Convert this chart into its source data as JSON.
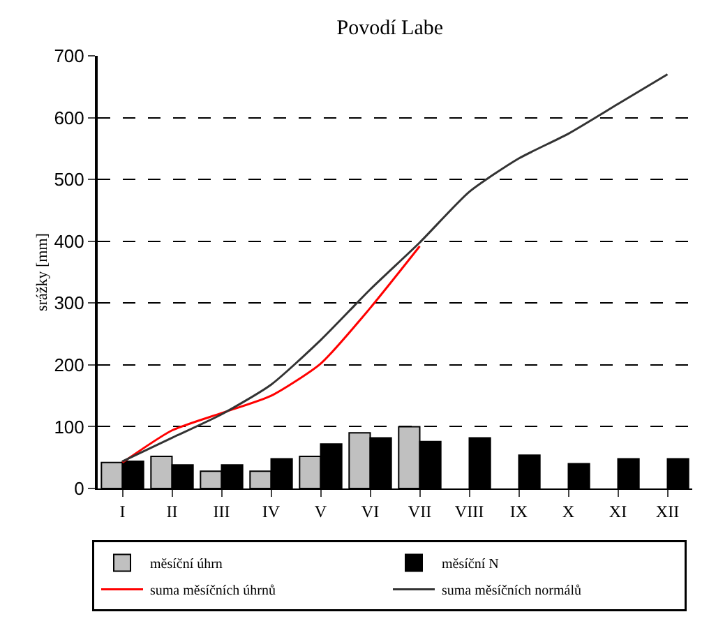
{
  "chart_data": {
    "type": "bar",
    "title": "Povodí Labe",
    "ylabel": "srážky [mm]",
    "categories": [
      "I",
      "II",
      "III",
      "IV",
      "V",
      "VI",
      "VII",
      "VIII",
      "IX",
      "X",
      "XI",
      "XII"
    ],
    "series": [
      {
        "name": "měsíční úhrn",
        "color": "#c0c0c0",
        "values": [
          42,
          52,
          28,
          28,
          52,
          90,
          100,
          null,
          null,
          null,
          null,
          null
        ]
      },
      {
        "name": "měsíční N",
        "color": "#000000",
        "values": [
          44,
          38,
          38,
          48,
          72,
          82,
          76,
          82,
          54,
          40,
          48,
          48
        ]
      },
      {
        "name": "suma měsíčních úhrnů",
        "type": "line",
        "color": "#ff0000",
        "values": [
          42,
          94,
          122,
          150,
          202,
          292,
          392,
          null,
          null,
          null,
          null,
          null
        ]
      },
      {
        "name": "suma měsíčních normálů",
        "type": "line",
        "color": "#333333",
        "values": [
          44,
          82,
          120,
          168,
          240,
          322,
          398,
          480,
          534,
          574,
          622,
          670
        ]
      }
    ],
    "ylim": [
      0,
      700
    ],
    "yticks": [
      0,
      100,
      200,
      300,
      400,
      500,
      600,
      700
    ],
    "grid": "y",
    "legend": "bottom",
    "marker": "none",
    "line_style": "solid"
  }
}
